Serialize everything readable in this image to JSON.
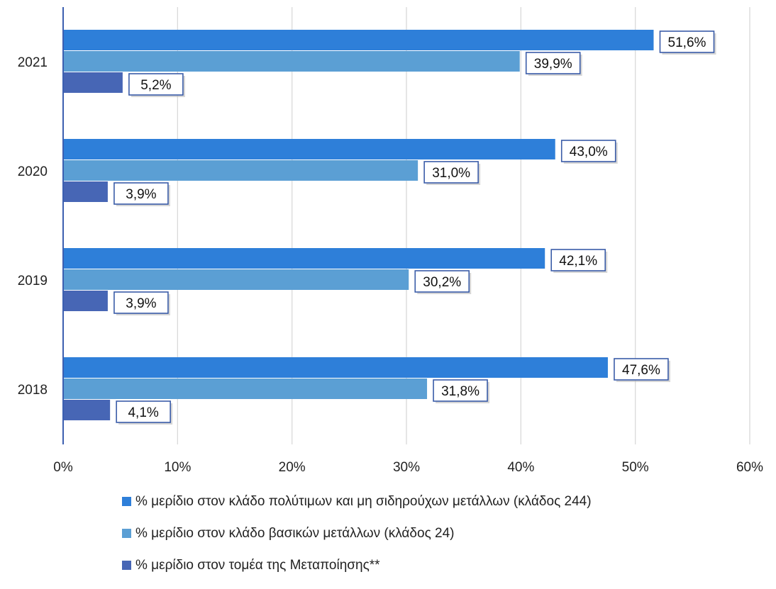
{
  "chart_data": {
    "type": "bar",
    "orientation": "horizontal",
    "categories": [
      "2021",
      "2020",
      "2019",
      "2018"
    ],
    "series": [
      {
        "name": "% μερίδιο στον κλάδο πολύτιμων και μη σιδηρούχων μετάλλων (κλάδος 244)",
        "values": [
          51.6,
          43.0,
          42.1,
          47.6
        ],
        "labels": [
          "51,6%",
          "43,0%",
          "42,1%",
          "47,6%"
        ],
        "color": "#2e7fd9"
      },
      {
        "name": "% μερίδιο στον κλάδο βασικών μετάλλων (κλάδος 24)",
        "values": [
          39.9,
          31.0,
          30.2,
          31.8
        ],
        "labels": [
          "39,9%",
          "31,0%",
          "30,2%",
          "31,8%"
        ],
        "color": "#5b9fd4"
      },
      {
        "name": "% μερίδιο στον τομέα της Μεταποίησης**",
        "values": [
          5.2,
          3.9,
          3.9,
          4.1
        ],
        "labels": [
          "5,2%",
          "3,9%",
          "3,9%",
          "4,1%"
        ],
        "color": "#4766b5"
      }
    ],
    "xlim": [
      0,
      60
    ],
    "xticks": [
      "0%",
      "10%",
      "20%",
      "30%",
      "40%",
      "50%",
      "60%"
    ],
    "xlabel": "",
    "ylabel": "",
    "grid": "vertical",
    "legend": "bottom"
  }
}
